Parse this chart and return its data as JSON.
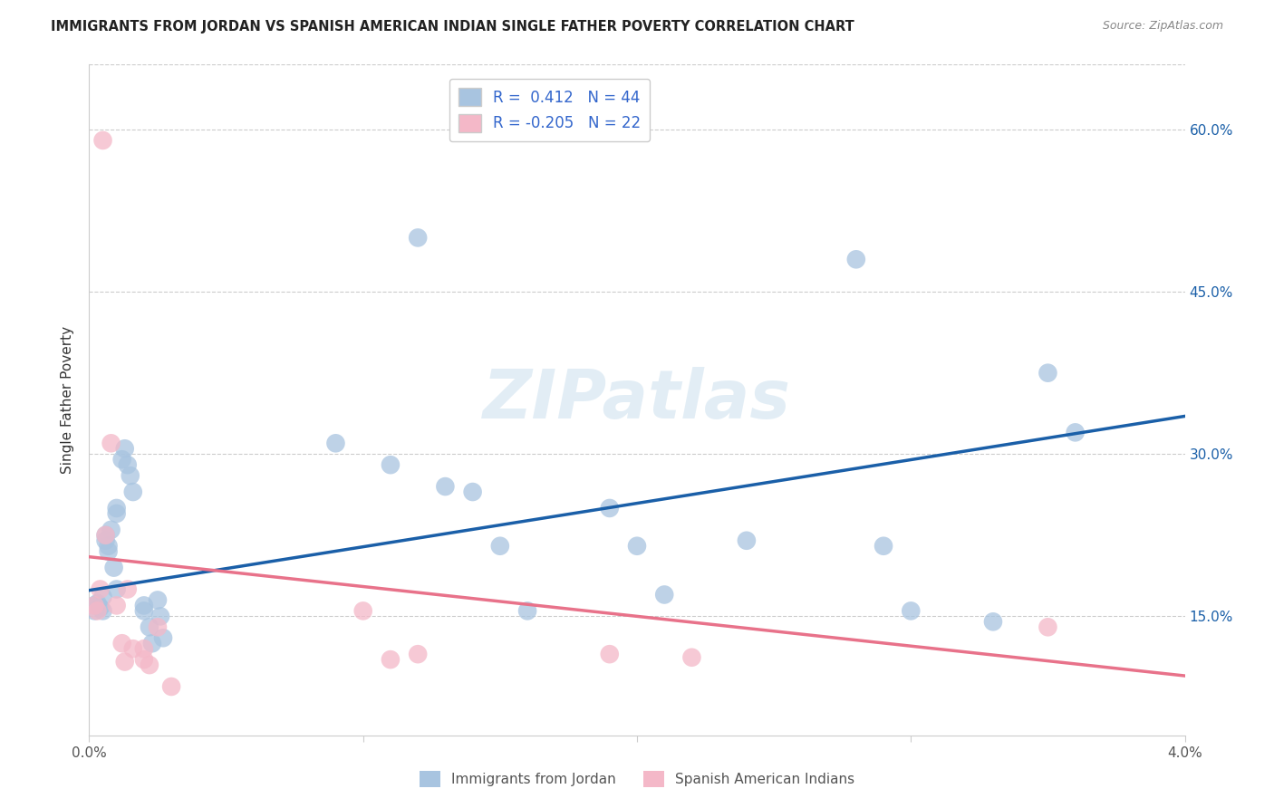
{
  "title": "IMMIGRANTS FROM JORDAN VS SPANISH AMERICAN INDIAN SINGLE FATHER POVERTY CORRELATION CHART",
  "source": "Source: ZipAtlas.com",
  "ylabel": "Single Father Poverty",
  "xlim": [
    0.0,
    0.04
  ],
  "ylim": [
    0.04,
    0.66
  ],
  "yticks": [
    0.15,
    0.3,
    0.45,
    0.6
  ],
  "ytick_labels": [
    "15.0%",
    "30.0%",
    "45.0%",
    "60.0%"
  ],
  "blue_r": 0.412,
  "blue_n": 44,
  "pink_r": -0.205,
  "pink_n": 22,
  "blue_color": "#a8c4e0",
  "pink_color": "#f4b8c8",
  "blue_line_color": "#1a5fa8",
  "pink_line_color": "#e8728a",
  "legend_text_color": "#3366cc",
  "watermark": "ZIPatlas",
  "background_color": "#ffffff",
  "grid_color": "#cccccc",
  "blue_points_x": [
    0.0002,
    0.0002,
    0.0003,
    0.0004,
    0.0005,
    0.0005,
    0.0006,
    0.0006,
    0.0007,
    0.0007,
    0.0008,
    0.0009,
    0.001,
    0.001,
    0.001,
    0.0012,
    0.0013,
    0.0014,
    0.0015,
    0.0016,
    0.002,
    0.002,
    0.0022,
    0.0023,
    0.0025,
    0.0026,
    0.0027,
    0.009,
    0.011,
    0.012,
    0.013,
    0.014,
    0.015,
    0.016,
    0.019,
    0.02,
    0.021,
    0.024,
    0.028,
    0.029,
    0.03,
    0.033,
    0.035,
    0.036
  ],
  "blue_points_y": [
    0.155,
    0.16,
    0.162,
    0.158,
    0.168,
    0.155,
    0.22,
    0.225,
    0.21,
    0.215,
    0.23,
    0.195,
    0.175,
    0.245,
    0.25,
    0.295,
    0.305,
    0.29,
    0.28,
    0.265,
    0.155,
    0.16,
    0.14,
    0.125,
    0.165,
    0.15,
    0.13,
    0.31,
    0.29,
    0.5,
    0.27,
    0.265,
    0.215,
    0.155,
    0.25,
    0.215,
    0.17,
    0.22,
    0.48,
    0.215,
    0.155,
    0.145,
    0.375,
    0.32
  ],
  "pink_points_x": [
    0.0002,
    0.0003,
    0.0004,
    0.0005,
    0.0006,
    0.0008,
    0.001,
    0.0012,
    0.0013,
    0.0014,
    0.0016,
    0.002,
    0.002,
    0.0022,
    0.0025,
    0.003,
    0.01,
    0.011,
    0.012,
    0.019,
    0.022,
    0.035
  ],
  "pink_points_y": [
    0.16,
    0.155,
    0.175,
    0.59,
    0.225,
    0.31,
    0.16,
    0.125,
    0.108,
    0.175,
    0.12,
    0.11,
    0.12,
    0.105,
    0.14,
    0.085,
    0.155,
    0.11,
    0.115,
    0.115,
    0.112,
    0.14
  ],
  "blue_line_x0": 0.0,
  "blue_line_y0": 0.174,
  "blue_line_x1": 0.04,
  "blue_line_y1": 0.335,
  "pink_line_x0": 0.0,
  "pink_line_y0": 0.205,
  "pink_line_x1": 0.04,
  "pink_line_y1": 0.095
}
